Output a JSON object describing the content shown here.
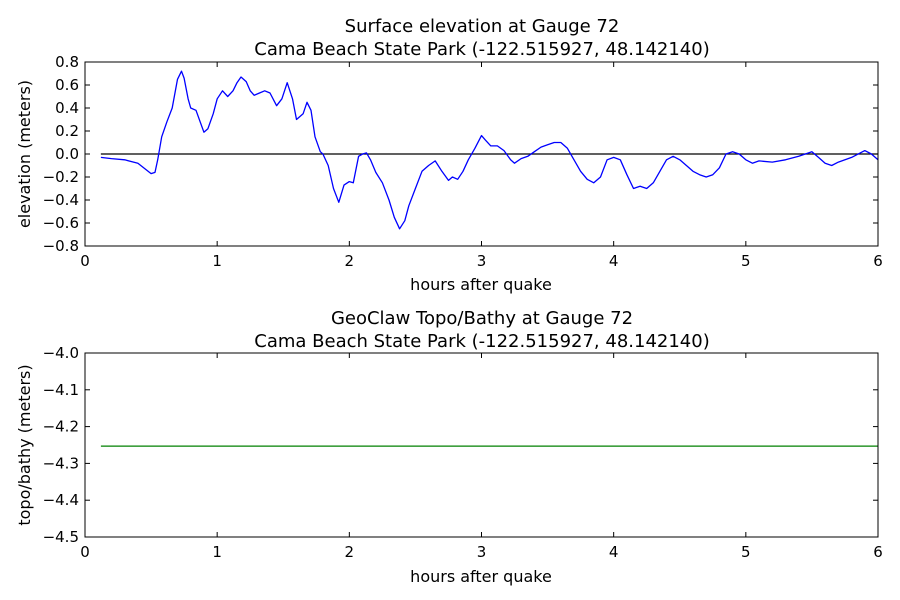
{
  "chart_data": [
    {
      "type": "line",
      "title_line1": "Surface elevation at Gauge 72",
      "title_line2": "Cama Beach State Park  (-122.515927, 48.142140)",
      "xlabel": "hours after quake",
      "ylabel": "elevation (meters)",
      "xlim": [
        0,
        6
      ],
      "ylim": [
        -0.8,
        0.8
      ],
      "xticks": [
        "0",
        "1",
        "2",
        "3",
        "4",
        "5",
        "6"
      ],
      "yticks": [
        "0.8",
        "0.6",
        "0.4",
        "0.2",
        "0.0",
        "−0.2",
        "−0.4",
        "−0.6",
        "−0.8"
      ],
      "reference_line_y": 0.0,
      "series": [
        {
          "color": "#0000ff",
          "x": [
            0.12,
            0.2,
            0.3,
            0.4,
            0.5,
            0.53,
            0.55,
            0.58,
            0.62,
            0.66,
            0.7,
            0.73,
            0.75,
            0.78,
            0.8,
            0.84,
            0.9,
            0.93,
            0.97,
            1.0,
            1.04,
            1.08,
            1.12,
            1.15,
            1.18,
            1.22,
            1.25,
            1.28,
            1.32,
            1.36,
            1.4,
            1.45,
            1.49,
            1.53,
            1.57,
            1.6,
            1.65,
            1.68,
            1.71,
            1.74,
            1.78,
            1.8,
            1.84,
            1.88,
            1.92,
            1.96,
            2.0,
            2.03,
            2.07,
            2.1,
            2.13,
            2.16,
            2.2,
            2.25,
            2.3,
            2.34,
            2.38,
            2.42,
            2.45,
            2.5,
            2.55,
            2.6,
            2.65,
            2.7,
            2.75,
            2.78,
            2.82,
            2.86,
            2.9,
            2.95,
            3.0,
            3.03,
            3.07,
            3.12,
            3.17,
            3.22,
            3.25,
            3.3,
            3.35,
            3.4,
            3.45,
            3.5,
            3.55,
            3.6,
            3.65,
            3.7,
            3.75,
            3.8,
            3.85,
            3.9,
            3.95,
            4.0,
            4.05,
            4.1,
            4.15,
            4.2,
            4.25,
            4.3,
            4.35,
            4.4,
            4.45,
            4.5,
            4.55,
            4.6,
            4.65,
            4.7,
            4.75,
            4.8,
            4.85,
            4.9,
            4.95,
            5.0,
            5.05,
            5.1,
            5.2,
            5.3,
            5.4,
            5.45,
            5.5,
            5.55,
            5.6,
            5.65,
            5.7,
            5.8,
            5.9,
            5.95,
            6.0
          ],
          "y": [
            -0.03,
            -0.04,
            -0.05,
            -0.08,
            -0.17,
            -0.16,
            -0.05,
            0.15,
            0.28,
            0.4,
            0.65,
            0.72,
            0.66,
            0.48,
            0.4,
            0.38,
            0.19,
            0.22,
            0.35,
            0.48,
            0.55,
            0.5,
            0.55,
            0.62,
            0.67,
            0.63,
            0.55,
            0.51,
            0.53,
            0.55,
            0.53,
            0.42,
            0.48,
            0.62,
            0.48,
            0.3,
            0.35,
            0.45,
            0.38,
            0.15,
            0.02,
            0.0,
            -0.1,
            -0.3,
            -0.42,
            -0.27,
            -0.24,
            -0.25,
            -0.02,
            0.0,
            0.01,
            -0.05,
            -0.16,
            -0.25,
            -0.4,
            -0.55,
            -0.65,
            -0.58,
            -0.45,
            -0.3,
            -0.15,
            -0.1,
            -0.06,
            -0.15,
            -0.23,
            -0.2,
            -0.22,
            -0.15,
            -0.05,
            0.05,
            0.16,
            0.12,
            0.07,
            0.07,
            0.03,
            -0.05,
            -0.08,
            -0.04,
            -0.02,
            0.02,
            0.06,
            0.08,
            0.1,
            0.1,
            0.05,
            -0.05,
            -0.15,
            -0.22,
            -0.25,
            -0.2,
            -0.05,
            -0.03,
            -0.05,
            -0.18,
            -0.3,
            -0.28,
            -0.3,
            -0.25,
            -0.15,
            -0.05,
            -0.02,
            -0.05,
            -0.1,
            -0.15,
            -0.18,
            -0.2,
            -0.18,
            -0.12,
            0.0,
            0.02,
            0.0,
            -0.05,
            -0.08,
            -0.06,
            -0.07,
            -0.05,
            -0.02,
            0.0,
            0.02,
            -0.03,
            -0.08,
            -0.1,
            -0.07,
            -0.03,
            0.03,
            0.0,
            -0.05
          ]
        }
      ]
    },
    {
      "type": "line",
      "title_line1": "GeoClaw Topo/Bathy at Gauge 72",
      "title_line2": "Cama Beach State Park  (-122.515927, 48.142140)",
      "xlabel": "hours after quake",
      "ylabel": "topo/bathy (meters)",
      "xlim": [
        0,
        6
      ],
      "ylim": [
        -4.5,
        -4.0
      ],
      "xticks": [
        "0",
        "1",
        "2",
        "3",
        "4",
        "5",
        "6"
      ],
      "yticks": [
        "−4.0",
        "−4.1",
        "−4.2",
        "−4.3",
        "−4.4",
        "−4.5"
      ],
      "series": [
        {
          "color": "#008000",
          "x": [
            0.12,
            6.0
          ],
          "y": [
            -4.253,
            -4.253
          ]
        }
      ]
    }
  ]
}
